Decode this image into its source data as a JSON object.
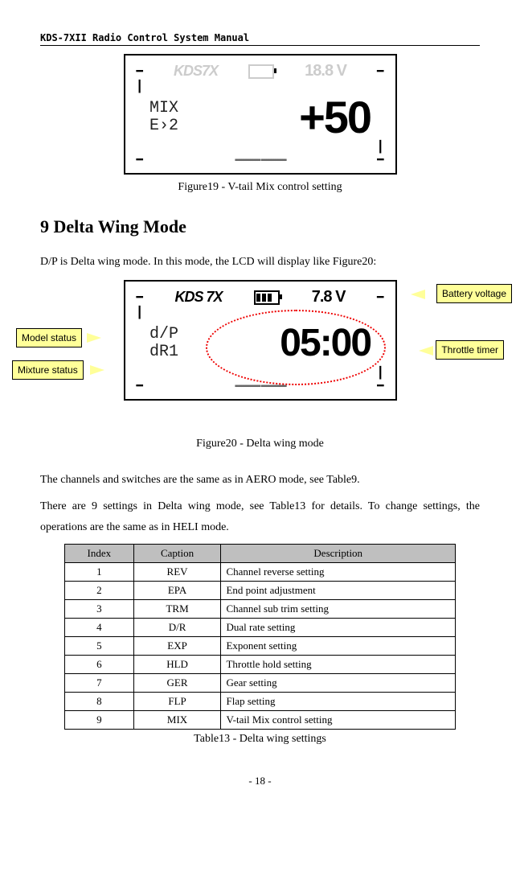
{
  "header": {
    "title": "KDS-7XII Radio Control System Manual"
  },
  "fig19": {
    "brand": "KDS7X",
    "left_line1": "MIX",
    "left_line2": "E›2",
    "big_value": "+50",
    "battery_faded": "18.8 V",
    "caption": "Figure19 - V-tail Mix control setting"
  },
  "section9": {
    "heading": "9 Delta Wing Mode"
  },
  "para1": "D/P is Delta wing mode. In this mode, the LCD will display like Figure20:",
  "callouts": {
    "model_status": "Model status",
    "mixture_status": "Mixture status",
    "battery_voltage": "Battery voltage",
    "throttle_timer": "Throttle timer"
  },
  "fig20": {
    "brand": "KDS 7X",
    "left_line1": "d/P",
    "left_line2": "dR1",
    "big_value": "05:00",
    "battery_val": "7.8 V",
    "caption": "Figure20 - Delta wing mode"
  },
  "para2": "The channels and switches are the same as in AERO mode, see Table9.",
  "para3": "There are 9 settings in Delta wing mode, see Table13 for details. To change settings, the operations are the same as in HELI mode.",
  "table": {
    "headers": [
      "Index",
      "Caption",
      "Description"
    ],
    "rows": [
      [
        "1",
        "REV",
        "Channel reverse setting"
      ],
      [
        "2",
        "EPA",
        "End point adjustment"
      ],
      [
        "3",
        "TRM",
        "Channel sub trim setting"
      ],
      [
        "4",
        "D/R",
        "Dual rate setting"
      ],
      [
        "5",
        "EXP",
        "Exponent setting"
      ],
      [
        "6",
        "HLD",
        "Throttle hold setting"
      ],
      [
        "7",
        "GER",
        "Gear setting"
      ],
      [
        "8",
        "FLP",
        "Flap setting"
      ],
      [
        "9",
        "MIX",
        "V-tail Mix control setting"
      ]
    ],
    "caption": "Table13 - Delta wing settings"
  },
  "footer": {
    "page": "- 18 -"
  }
}
